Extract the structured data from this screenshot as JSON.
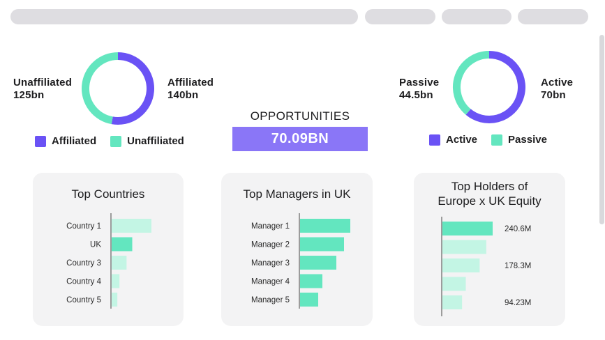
{
  "colors": {
    "purple": "#6a52f5",
    "teal": "#63e6bf",
    "teal_light": "#c3f5e4",
    "opportunity_bg": "#8a76f7",
    "card_bg": "#f3f3f4"
  },
  "top_bar": {
    "pills": 4
  },
  "opportunities": {
    "title": "OPPORTUNITIES",
    "value": "70.09BN"
  },
  "affiliation": {
    "left_label": {
      "name": "Unaffiliated",
      "value": "125bn"
    },
    "right_label": {
      "name": "Affiliated",
      "value": "140bn"
    },
    "legend": [
      {
        "label": "Affiliated",
        "color": "#6a52f5"
      },
      {
        "label": "Unaffiliated",
        "color": "#63e6bf"
      }
    ]
  },
  "management": {
    "left_label": {
      "name": "Passive",
      "value": "44.5bn"
    },
    "right_label": {
      "name": "Active",
      "value": "70bn"
    },
    "legend": [
      {
        "label": "Active",
        "color": "#6a52f5"
      },
      {
        "label": "Passive",
        "color": "#63e6bf"
      }
    ]
  },
  "chart_data": [
    {
      "type": "pie",
      "categories": [
        "Affiliated",
        "Unaffiliated"
      ],
      "values": [
        140,
        125
      ],
      "unit": "bn",
      "legend": "bottom",
      "donut": true
    },
    {
      "type": "pie",
      "categories": [
        "Active",
        "Passive"
      ],
      "values": [
        70,
        44.5
      ],
      "unit": "bn",
      "legend": "bottom",
      "donut": true
    },
    {
      "type": "bar",
      "orientation": "horizontal",
      "title": "Top Countries",
      "categories": [
        "Country 1",
        "UK",
        "Country 3",
        "Country 4",
        "Country 5"
      ],
      "values": [
        56,
        29,
        21,
        11,
        8
      ],
      "colors": [
        "#c3f5e4",
        "#63e6bf",
        "#c3f5e4",
        "#c3f5e4",
        "#c3f5e4"
      ],
      "grid": false
    },
    {
      "type": "bar",
      "orientation": "horizontal",
      "title": "Top Managers in UK",
      "categories": [
        "Manager 1",
        "Manager 2",
        "Manager 3",
        "Manager 4",
        "Manager 5"
      ],
      "values": [
        72,
        63,
        52,
        32,
        26
      ],
      "colors": [
        "#63e6bf",
        "#63e6bf",
        "#63e6bf",
        "#63e6bf",
        "#63e6bf"
      ],
      "grid": false
    },
    {
      "type": "bar",
      "orientation": "horizontal",
      "title_lines": [
        "Top Holders of",
        "Europe x UK Equity"
      ],
      "categories": [
        "",
        "",
        "",
        "",
        ""
      ],
      "values": [
        240.6,
        210,
        178.3,
        112,
        94.23
      ],
      "data_labels": [
        "240.6M",
        "",
        "178.3M",
        "",
        "94.23M"
      ],
      "unit": "M",
      "colors": [
        "#63e6bf",
        "#c3f5e4",
        "#c3f5e4",
        "#c3f5e4",
        "#c3f5e4"
      ],
      "grid": false
    }
  ]
}
